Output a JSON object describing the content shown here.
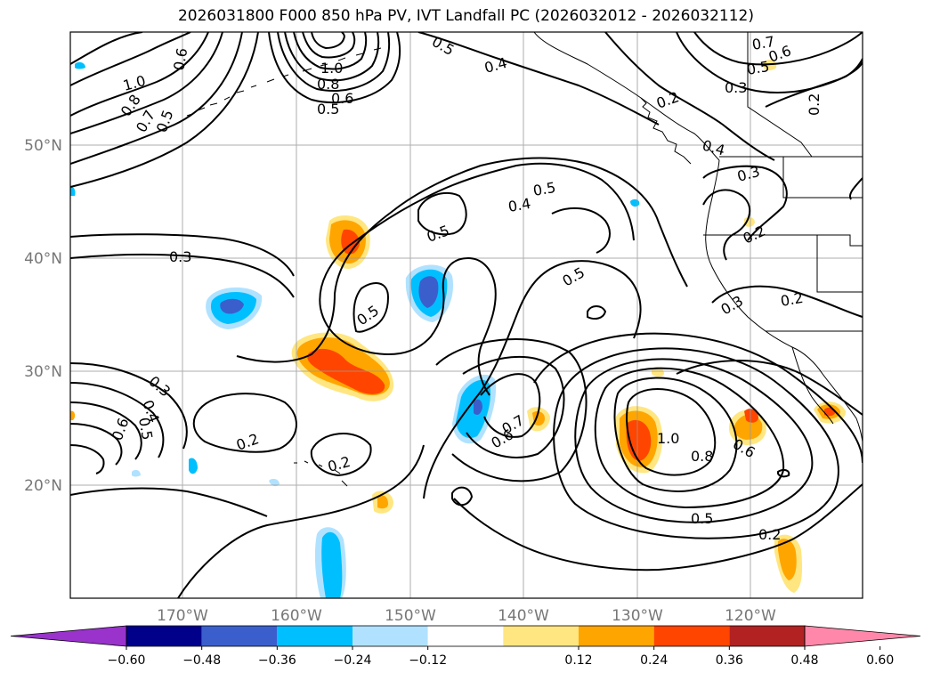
{
  "title": "2026031800 F000 850 hPa PV, IVT Landfall PC (2026032012 - 2026032112)",
  "map": {
    "lon_labels": [
      "170°W",
      "160°W",
      "150°W",
      "140°W",
      "130°W",
      "120°W"
    ],
    "lat_labels": [
      "50°N",
      "40°N",
      "30°N",
      "20°N"
    ],
    "contour_labels": [
      {
        "text": "1.0"
      },
      {
        "text": "0.8"
      },
      {
        "text": "0.6"
      },
      {
        "text": "0.5"
      },
      {
        "text": "0.7"
      },
      {
        "text": "1.0"
      },
      {
        "text": "0.8"
      },
      {
        "text": "0.6"
      },
      {
        "text": "0.5"
      },
      {
        "text": "0.5"
      },
      {
        "text": "0.4"
      },
      {
        "text": "0.2"
      },
      {
        "text": "0.4"
      },
      {
        "text": "0.7"
      },
      {
        "text": "0.6"
      },
      {
        "text": "0.5"
      },
      {
        "text": "0.3"
      },
      {
        "text": "0.2"
      },
      {
        "text": "0.3"
      },
      {
        "text": "0.5"
      },
      {
        "text": "0.4"
      },
      {
        "text": "0.5"
      },
      {
        "text": "0.5"
      },
      {
        "text": "0.5"
      },
      {
        "text": "0.3"
      },
      {
        "text": "0.2"
      },
      {
        "text": "0.3"
      },
      {
        "text": "0.2"
      },
      {
        "text": "0.3"
      },
      {
        "text": "0.4"
      },
      {
        "text": "0.5"
      },
      {
        "text": "0.6"
      },
      {
        "text": "0.2"
      },
      {
        "text": "0.2"
      },
      {
        "text": "0.7"
      },
      {
        "text": "0.6"
      },
      {
        "text": "1.0"
      },
      {
        "text": "0.8"
      },
      {
        "text": "0.6"
      },
      {
        "text": "0.5"
      },
      {
        "text": "0.2"
      }
    ]
  },
  "colorbar": {
    "ticks": [
      "−0.60",
      "−0.48",
      "−0.36",
      "−0.24",
      "−0.12",
      "0.12",
      "0.24",
      "0.36",
      "0.48",
      "0.60"
    ],
    "colors": [
      "#9933cc",
      "#00008b",
      "#3a5fcd",
      "#00bfff",
      "#b0e2ff",
      "#ffffff",
      "#ffe680",
      "#ffa500",
      "#ff4500",
      "#b22222",
      "#ff88aa"
    ]
  }
}
